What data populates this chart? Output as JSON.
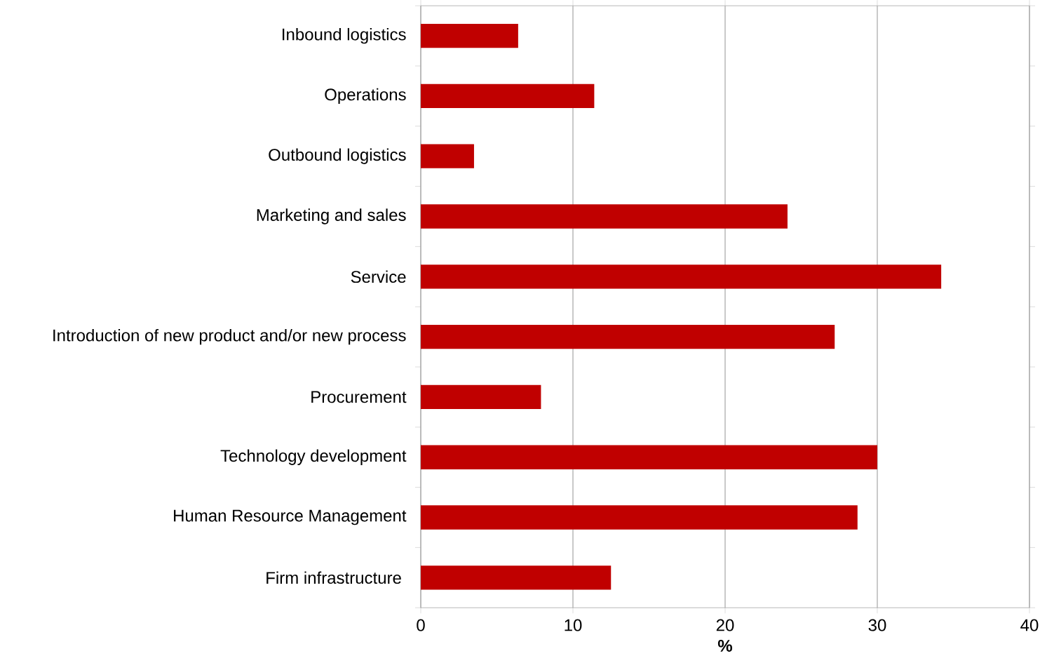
{
  "chart_data": {
    "type": "bar",
    "orientation": "horizontal",
    "xlabel": "%",
    "categories": [
      "Inbound logistics",
      "Operations",
      "Outbound logistics",
      "Marketing and sales",
      "Service",
      "Introduction of new product and/or new process",
      "Procurement",
      "Technology development",
      "Human Resource Management",
      "Firm infrastructure "
    ],
    "values": [
      6.4,
      11.4,
      3.5,
      24.1,
      34.2,
      27.2,
      7.9,
      30.0,
      28.7,
      12.5
    ],
    "color": "#c00000",
    "xlim": [
      0,
      40
    ],
    "xticks": [
      0,
      10,
      20,
      30,
      40
    ],
    "grid": "x"
  }
}
